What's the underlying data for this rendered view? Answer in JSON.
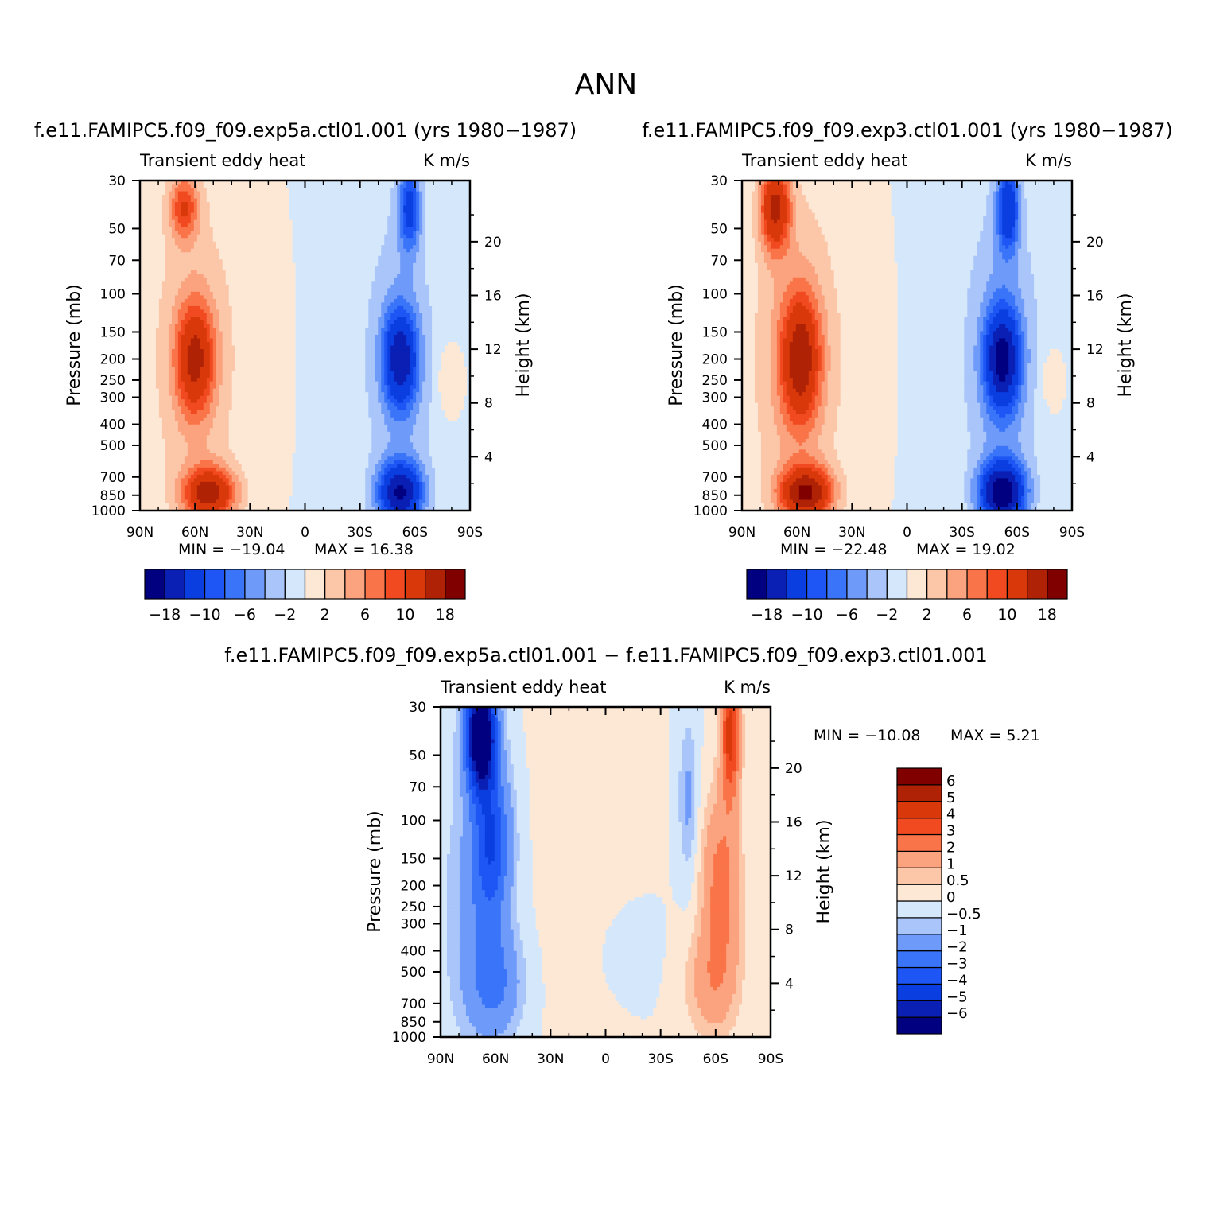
{
  "page_title": "ANN",
  "colors": {
    "absolute_levels": [
      "#000080",
      "#0a1fb4",
      "#0a3ee0",
      "#1e56f5",
      "#3a74f8",
      "#6e9af9",
      "#a9c5fa",
      "#d5e8fb",
      "#fde8d6",
      "#fcc7a9",
      "#fba27e",
      "#fa7449",
      "#f14a20",
      "#d8380a",
      "#b02205",
      "#800000"
    ],
    "difference_levels": [
      "#000080",
      "#0a1fb4",
      "#0a3ee0",
      "#1e56f5",
      "#3a74f8",
      "#6e9af9",
      "#a9c5fa",
      "#d5e8fb",
      "#fde8d6",
      "#fcc7a9",
      "#fba27e",
      "#fa7449",
      "#f14a20",
      "#d8380a",
      "#b02205",
      "#800000"
    ]
  },
  "chart_data": [
    {
      "type": "heatmap",
      "panel": "top-left",
      "case_title": "f.e11.FAMIPC5.f09_f09.exp5a.ctl01.001 (yrs 1980-1987)",
      "left_string": "Transient eddy heat",
      "right_string": "K m/s",
      "ylabel": "Pressure (mb)",
      "ylabel_right": "Height (km)",
      "x_ticks": [
        "90N",
        "60N",
        "30N",
        "0",
        "30S",
        "60S",
        "90S"
      ],
      "y_ticks": [
        "30",
        "50",
        "70",
        "100",
        "150",
        "200",
        "250",
        "300",
        "400",
        "500",
        "700",
        "850",
        "1000"
      ],
      "y_ticks_right": [
        "4",
        "8",
        "12",
        "16",
        "20"
      ],
      "y_scale": "log",
      "ylim": [
        1000,
        30
      ],
      "xlim": [
        90,
        -90
      ],
      "min_label": "MIN = -19.04",
      "max_label": "MAX = 16.38",
      "min": -19.04,
      "max": 16.38,
      "colorbar_orientation": "horizontal",
      "colorbar_labels": [
        "-18",
        "-10",
        "-6",
        "-2",
        "2",
        "6",
        "10",
        "18"
      ],
      "contour_levels": [
        -18,
        -14,
        -10,
        -8,
        -6,
        -4,
        -2,
        0,
        2,
        4,
        6,
        8,
        10,
        14,
        18
      ]
    },
    {
      "type": "heatmap",
      "panel": "top-right",
      "case_title": "f.e11.FAMIPC5.f09_f09.exp3.ctl01.001 (yrs 1980-1987)",
      "left_string": "Transient eddy heat",
      "right_string": "K m/s",
      "ylabel": "Pressure (mb)",
      "ylabel_right": "Height (km)",
      "x_ticks": [
        "90N",
        "60N",
        "30N",
        "0",
        "30S",
        "60S",
        "90S"
      ],
      "y_ticks": [
        "30",
        "50",
        "70",
        "100",
        "150",
        "200",
        "250",
        "300",
        "400",
        "500",
        "700",
        "850",
        "1000"
      ],
      "y_ticks_right": [
        "4",
        "8",
        "12",
        "16",
        "20"
      ],
      "y_scale": "log",
      "ylim": [
        1000,
        30
      ],
      "xlim": [
        90,
        -90
      ],
      "min_label": "MIN = -22.48",
      "max_label": "MAX = 19.02",
      "min": -22.48,
      "max": 19.02,
      "colorbar_orientation": "horizontal",
      "colorbar_labels": [
        "-18",
        "-10",
        "-6",
        "-2",
        "2",
        "6",
        "10",
        "18"
      ],
      "contour_levels": [
        -18,
        -14,
        -10,
        -8,
        -6,
        -4,
        -2,
        0,
        2,
        4,
        6,
        8,
        10,
        14,
        18
      ]
    },
    {
      "type": "heatmap",
      "panel": "bottom",
      "case_title": "f.e11.FAMIPC5.f09_f09.exp5a.ctl01.001 - f.e11.FAMIPC5.f09_f09.exp3.ctl01.001",
      "left_string": "Transient eddy heat",
      "right_string": "K m/s",
      "ylabel": "Pressure (mb)",
      "ylabel_right": "Height (km)",
      "x_ticks": [
        "90N",
        "60N",
        "30N",
        "0",
        "30S",
        "60S",
        "90S"
      ],
      "y_ticks": [
        "30",
        "50",
        "70",
        "100",
        "150",
        "200",
        "250",
        "300",
        "400",
        "500",
        "700",
        "850",
        "1000"
      ],
      "y_ticks_right": [
        "4",
        "8",
        "12",
        "16",
        "20"
      ],
      "y_scale": "log",
      "ylim": [
        1000,
        30
      ],
      "xlim": [
        90,
        -90
      ],
      "min_label": "MIN = -10.08",
      "max_label": "MAX = 5.21",
      "min": -10.08,
      "max": 5.21,
      "colorbar_orientation": "vertical",
      "colorbar_labels": [
        "6",
        "5",
        "4",
        "3",
        "2",
        "1",
        "0.5",
        "0",
        "-0.5",
        "-1",
        "-2",
        "-3",
        "-4",
        "-5",
        "-6"
      ],
      "contour_levels": [
        -6,
        -5,
        -4,
        -3,
        -2,
        -1,
        -0.5,
        0,
        0.5,
        1,
        2,
        3,
        4,
        5,
        6
      ]
    }
  ]
}
